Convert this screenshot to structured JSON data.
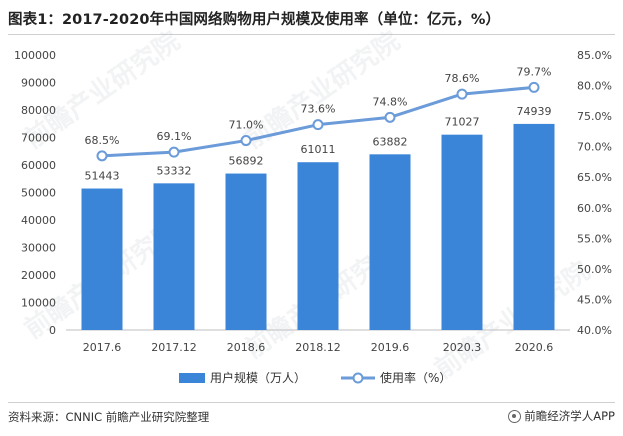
{
  "page": {
    "title": "图表1：2017-2020年中国网络购物用户规模及使用率（单位：亿元，%）",
    "source": "资料来源：CNNIC 前瞻产业研究院整理",
    "brand": "前瞻经济学人APP",
    "brand_icon": "qianzhan-logo-icon",
    "watermark": "前瞻产业研究院"
  },
  "chart_data": {
    "type": "bar",
    "categories": [
      "2017.6",
      "2017.12",
      "2018.6",
      "2018.12",
      "2019.6",
      "2020.3",
      "2020.6"
    ],
    "series": [
      {
        "name": "用户规模（万人）",
        "type": "bar",
        "axis": "left",
        "values": [
          51443,
          53332,
          56892,
          61011,
          63882,
          71027,
          74939
        ],
        "value_labels": [
          "51443",
          "53332",
          "56892",
          "61011",
          "63882",
          "71027",
          "74939"
        ],
        "color": "#3a85d8"
      },
      {
        "name": "使用率（%）",
        "type": "line",
        "axis": "right",
        "values": [
          68.5,
          69.1,
          71.0,
          73.6,
          74.8,
          78.6,
          79.7
        ],
        "value_labels": [
          "68.5%",
          "69.1%",
          "71.0%",
          "73.6%",
          "74.8%",
          "78.6%",
          "79.7%"
        ],
        "color": "#6b9bd8"
      }
    ],
    "left_axis": {
      "ylim": [
        0,
        100000
      ],
      "ticks": [
        "0",
        "10000",
        "20000",
        "30000",
        "40000",
        "50000",
        "60000",
        "70000",
        "80000",
        "90000",
        "100000"
      ]
    },
    "right_axis": {
      "ylim": [
        40,
        85
      ],
      "ticks": [
        "40.0%",
        "45.0%",
        "50.0%",
        "55.0%",
        "60.0%",
        "65.0%",
        "70.0%",
        "75.0%",
        "80.0%",
        "85.0%"
      ]
    },
    "grid": false,
    "legend": "bottom-center"
  }
}
